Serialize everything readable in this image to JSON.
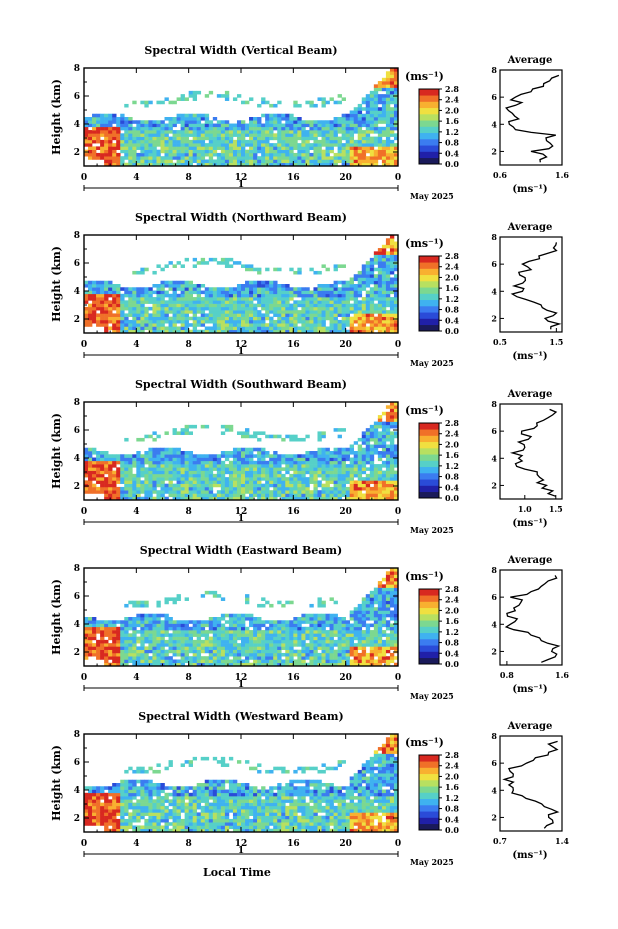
{
  "figure": {
    "xlabel": "Local Time",
    "date_label": "May 2025",
    "day_label": "1",
    "unit": "(ms⁻¹)",
    "ylabel": "Height (km)",
    "avg_title": "Average",
    "avg_unit": "(ms⁻¹)"
  },
  "colorscale": [
    "#1a1a5a",
    "#2020a8",
    "#2a4bd8",
    "#3b7cf0",
    "#3fb2f0",
    "#56d0c8",
    "#7cd890",
    "#b8e060",
    "#f0e040",
    "#f8b030",
    "#f07028",
    "#d82820"
  ],
  "chart_data": [
    {
      "type": "heatmap",
      "title": "Spectral Width (Vertical Beam)",
      "xlabel": "",
      "ylabel": "Height (km)",
      "xlim": [
        0,
        24
      ],
      "ylim": [
        1,
        8
      ],
      "x_ticks": [
        "0",
        "4",
        "8",
        "12",
        "16",
        "20",
        "0"
      ],
      "y_ticks": [
        "2",
        "4",
        "6",
        "8"
      ],
      "colorbar": {
        "label": "(ms⁻¹)",
        "range": [
          0,
          2.8
        ],
        "ticks": [
          "0.0",
          "0.4",
          "0.8",
          "1.2",
          "1.6",
          "2.0",
          "2.4",
          "2.8"
        ]
      },
      "average_profile": {
        "title": "Average",
        "xlabel": "(ms⁻¹)",
        "xlim": [
          0.6,
          1.6
        ],
        "x_ticks": [
          "0.6",
          "1.6"
        ],
        "y_ticks": [
          "2",
          "4",
          "6",
          "8"
        ],
        "heights": [
          1.2,
          1.6,
          2.0,
          2.4,
          2.8,
          3.2,
          3.6,
          4.0,
          4.4,
          4.8,
          5.2,
          5.6,
          6.0,
          6.4,
          6.8,
          7.2,
          7.6
        ],
        "values": [
          1.25,
          1.35,
          1.1,
          1.45,
          1.35,
          1.5,
          0.85,
          0.75,
          0.9,
          0.8,
          0.7,
          0.95,
          0.85,
          1.1,
          1.3,
          1.4,
          1.55
        ]
      }
    },
    {
      "type": "heatmap",
      "title": "Spectral Width (Northward Beam)",
      "xlabel": "",
      "ylabel": "Height (km)",
      "xlim": [
        0,
        24
      ],
      "ylim": [
        1,
        8
      ],
      "x_ticks": [
        "0",
        "4",
        "8",
        "12",
        "16",
        "20",
        "0"
      ],
      "y_ticks": [
        "2",
        "4",
        "6",
        "8"
      ],
      "colorbar": {
        "label": "(ms⁻¹)",
        "range": [
          0,
          2.8
        ],
        "ticks": [
          "0.0",
          "0.4",
          "0.8",
          "1.2",
          "1.6",
          "2.0",
          "2.4",
          "2.8"
        ]
      },
      "average_profile": {
        "title": "Average",
        "xlabel": "(ms⁻¹)",
        "xlim": [
          0.5,
          1.6
        ],
        "x_ticks": [
          "0.5",
          "1.5"
        ],
        "y_ticks": [
          "2",
          "4",
          "6",
          "8"
        ],
        "heights": [
          1.2,
          1.6,
          2.0,
          2.4,
          2.8,
          3.2,
          3.6,
          4.0,
          4.4,
          4.8,
          5.2,
          5.6,
          6.0,
          6.4,
          6.8,
          7.2,
          7.6
        ],
        "values": [
          1.4,
          1.55,
          1.3,
          1.5,
          1.25,
          1.1,
          0.8,
          0.9,
          0.75,
          0.95,
          0.85,
          1.05,
          0.9,
          1.2,
          1.35,
          1.45,
          1.5
        ]
      }
    },
    {
      "type": "heatmap",
      "title": "Spectral Width (Southward Beam)",
      "xlabel": "",
      "ylabel": "Height (km)",
      "xlim": [
        0,
        24
      ],
      "ylim": [
        1,
        8
      ],
      "x_ticks": [
        "0",
        "4",
        "8",
        "12",
        "16",
        "20",
        "0"
      ],
      "y_ticks": [
        "2",
        "4",
        "6",
        "8"
      ],
      "colorbar": {
        "label": "(ms⁻¹)",
        "range": [
          0,
          2.8
        ],
        "ticks": [
          "0.0",
          "0.4",
          "0.8",
          "1.2",
          "1.6",
          "2.0",
          "2.4",
          "2.8"
        ]
      },
      "average_profile": {
        "title": "Average",
        "xlabel": "(ms⁻¹)",
        "xlim": [
          0.6,
          1.6
        ],
        "x_ticks": [
          "1.0",
          "1.5"
        ],
        "y_ticks": [
          "2",
          "4",
          "6",
          "8"
        ],
        "heights": [
          1.2,
          1.6,
          2.0,
          2.4,
          2.8,
          3.2,
          3.6,
          4.0,
          4.4,
          4.8,
          5.2,
          5.6,
          6.0,
          6.4,
          6.8,
          7.2,
          7.6
        ],
        "values": [
          1.5,
          1.45,
          1.35,
          1.3,
          1.2,
          1.0,
          0.85,
          0.9,
          0.8,
          1.0,
          0.9,
          1.1,
          0.95,
          1.2,
          1.3,
          1.45,
          1.4
        ]
      }
    },
    {
      "type": "heatmap",
      "title": "Spectral Width (Eastward Beam)",
      "xlabel": "",
      "ylabel": "Height (km)",
      "xlim": [
        0,
        24
      ],
      "ylim": [
        1,
        8
      ],
      "x_ticks": [
        "0",
        "4",
        "8",
        "12",
        "16",
        "20",
        "0"
      ],
      "y_ticks": [
        "2",
        "4",
        "6",
        "8"
      ],
      "colorbar": {
        "label": "(ms⁻¹)",
        "range": [
          0,
          2.8
        ],
        "ticks": [
          "0.0",
          "0.4",
          "0.8",
          "1.2",
          "1.6",
          "2.0",
          "2.4",
          "2.8"
        ]
      },
      "average_profile": {
        "title": "Average",
        "xlabel": "(ms⁻¹)",
        "xlim": [
          0.7,
          1.6
        ],
        "x_ticks": [
          "0.8",
          "1.6"
        ],
        "y_ticks": [
          "2",
          "4",
          "6",
          "8"
        ],
        "heights": [
          1.2,
          1.6,
          2.0,
          2.4,
          2.8,
          3.2,
          3.6,
          4.0,
          4.4,
          4.8,
          5.2,
          5.6,
          6.0,
          6.4,
          6.8,
          7.2,
          7.6
        ],
        "values": [
          1.3,
          1.5,
          1.45,
          1.55,
          1.3,
          1.15,
          0.9,
          0.85,
          0.95,
          0.8,
          0.9,
          1.0,
          0.85,
          1.15,
          1.3,
          1.4,
          1.5
        ]
      }
    },
    {
      "type": "heatmap",
      "title": "Spectral Width (Westward Beam)",
      "xlabel": "Local Time",
      "ylabel": "Height (km)",
      "xlim": [
        0,
        24
      ],
      "ylim": [
        1,
        8
      ],
      "x_ticks": [
        "0",
        "4",
        "8",
        "12",
        "16",
        "20",
        "0"
      ],
      "y_ticks": [
        "2",
        "4",
        "6",
        "8"
      ],
      "colorbar": {
        "label": "(ms⁻¹)",
        "range": [
          0,
          2.8
        ],
        "ticks": [
          "0.0",
          "0.4",
          "0.8",
          "1.2",
          "1.6",
          "2.0",
          "2.4",
          "2.8"
        ]
      },
      "average_profile": {
        "title": "Average",
        "xlabel": "(ms⁻¹)",
        "xlim": [
          0.7,
          1.4
        ],
        "x_ticks": [
          "0.7",
          "1.4"
        ],
        "y_ticks": [
          "2",
          "4",
          "6",
          "8"
        ],
        "heights": [
          1.2,
          1.6,
          2.0,
          2.4,
          2.8,
          3.2,
          3.6,
          4.0,
          4.4,
          4.8,
          5.2,
          5.6,
          6.0,
          6.4,
          6.8,
          7.2,
          7.6
        ],
        "values": [
          1.2,
          1.3,
          1.25,
          1.35,
          1.2,
          1.1,
          0.95,
          0.85,
          0.8,
          0.75,
          0.85,
          0.8,
          1.0,
          1.1,
          1.25,
          1.3,
          1.35
        ]
      }
    }
  ]
}
